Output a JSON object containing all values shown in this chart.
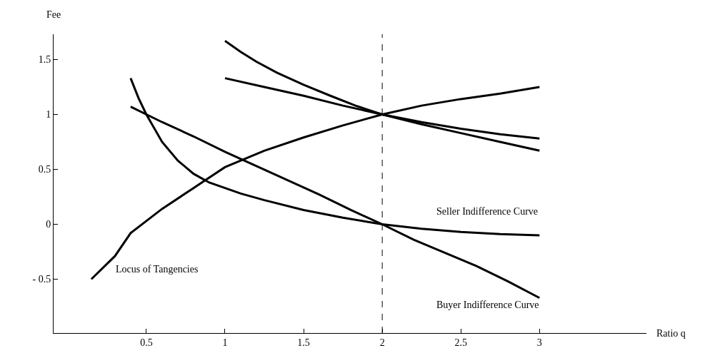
{
  "chart_data": {
    "type": "line",
    "xlabel": "Ratio q",
    "ylabel": "Fee",
    "xlim": [
      -0.09,
      3.68
    ],
    "ylim": [
      -0.99,
      1.73
    ],
    "xticks": [
      0.5,
      1,
      1.5,
      2,
      2.5,
      3
    ],
    "yticks": [
      {
        "value": -0.5,
        "label": "- 0.5"
      },
      0,
      0.5,
      1,
      1.5
    ],
    "grid": false,
    "marker": "none",
    "line_style": "solid",
    "series": [
      {
        "color": "#000000",
        "x": [
          0.15,
          0.3,
          0.4,
          0.5,
          0.6,
          0.8,
          1,
          1.25,
          1.5,
          1.75,
          2,
          2.25,
          2.5,
          2.75,
          3
        ],
        "values": [
          -0.5,
          -0.29,
          -0.08,
          0.03,
          0.14,
          0.33,
          0.52,
          0.67,
          0.79,
          0.9,
          1.0,
          1.08,
          1.14,
          1.19,
          1.25
        ]
      },
      {
        "color": "#000000",
        "x": [
          0.4,
          0.6,
          0.8,
          1,
          1.2,
          1.4,
          1.6,
          1.8,
          2,
          2.2,
          2.4,
          2.6,
          2.8,
          3
        ],
        "values": [
          1.07,
          0.93,
          0.8,
          0.66,
          0.53,
          0.4,
          0.27,
          0.13,
          0,
          -0.14,
          -0.26,
          -0.38,
          -0.52,
          -0.67
        ]
      },
      {
        "color": "#000000",
        "x": [
          0.4,
          0.45,
          0.5,
          0.6,
          0.7,
          0.8,
          0.9,
          1,
          1.1,
          1.25,
          1.5,
          1.75,
          2,
          2.25,
          2.5,
          2.75,
          3
        ],
        "values": [
          1.33,
          1.15,
          1.0,
          0.75,
          0.58,
          0.46,
          0.38,
          0.33,
          0.28,
          0.22,
          0.13,
          0.06,
          0,
          -0.04,
          -0.07,
          -0.09,
          -0.1
        ]
      },
      {
        "color": "#000000",
        "x": [
          1,
          1.1,
          1.2,
          1.33,
          1.5,
          1.67,
          1.83,
          2,
          2.25,
          2.5,
          2.75,
          3
        ],
        "values": [
          1.67,
          1.57,
          1.48,
          1.38,
          1.27,
          1.17,
          1.08,
          1.0,
          0.91,
          0.83,
          0.75,
          0.67
        ]
      },
      {
        "color": "#000000",
        "x": [
          1,
          1.25,
          1.5,
          1.75,
          2,
          2.25,
          2.5,
          2.75,
          3
        ],
        "values": [
          1.33,
          1.25,
          1.17,
          1.08,
          1.0,
          0.93,
          0.87,
          0.82,
          0.78
        ]
      }
    ],
    "ref_lines": [
      {
        "axis": "x",
        "value": 2,
        "color": "#000000",
        "line_style": "dashed"
      }
    ],
    "annotations": [
      "Locus of Tangencies",
      "Seller Indifference Curve",
      "Buyer Indifference Curve"
    ]
  }
}
